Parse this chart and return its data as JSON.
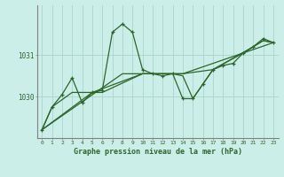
{
  "title": "Graphe pression niveau de la mer (hPa)",
  "bg_color": "#cceee8",
  "line_color": "#2d6627",
  "grid_color": "#aad4cc",
  "spine_color": "#808080",
  "x_ticks": [
    0,
    1,
    2,
    3,
    4,
    5,
    6,
    7,
    8,
    9,
    10,
    11,
    12,
    13,
    14,
    15,
    16,
    17,
    18,
    19,
    20,
    21,
    22,
    23
  ],
  "y_ticks": [
    1030,
    1031
  ],
  "ylim": [
    1029.0,
    1032.2
  ],
  "xlim": [
    -0.5,
    23.5
  ],
  "series1": [
    [
      0,
      1029.2
    ],
    [
      1,
      1029.75
    ],
    [
      2,
      1030.05
    ],
    [
      3,
      1030.45
    ],
    [
      4,
      1029.85
    ],
    [
      5,
      1030.1
    ],
    [
      6,
      1030.15
    ],
    [
      7,
      1031.55
    ],
    [
      8,
      1031.75
    ],
    [
      9,
      1031.55
    ],
    [
      10,
      1030.65
    ],
    [
      11,
      1030.55
    ],
    [
      12,
      1030.5
    ],
    [
      13,
      1030.55
    ],
    [
      14,
      1029.95
    ],
    [
      15,
      1029.95
    ],
    [
      16,
      1030.3
    ],
    [
      17,
      1030.65
    ],
    [
      18,
      1030.75
    ],
    [
      19,
      1030.8
    ],
    [
      20,
      1031.05
    ],
    [
      21,
      1031.2
    ],
    [
      22,
      1031.4
    ],
    [
      23,
      1031.3
    ]
  ],
  "series2": [
    [
      0,
      1029.2
    ],
    [
      1,
      1029.75
    ],
    [
      3,
      1030.1
    ],
    [
      5,
      1030.1
    ],
    [
      6,
      1030.1
    ],
    [
      10,
      1030.55
    ],
    [
      13,
      1030.55
    ],
    [
      14,
      1030.5
    ],
    [
      15,
      1029.95
    ],
    [
      16,
      1030.3
    ],
    [
      17,
      1030.65
    ],
    [
      21,
      1031.2
    ],
    [
      22,
      1031.35
    ],
    [
      23,
      1031.3
    ]
  ],
  "series3": [
    [
      0,
      1029.2
    ],
    [
      5,
      1030.1
    ],
    [
      10,
      1030.55
    ],
    [
      14,
      1030.55
    ],
    [
      17,
      1030.65
    ],
    [
      20,
      1031.05
    ],
    [
      22,
      1031.35
    ],
    [
      23,
      1031.3
    ]
  ],
  "series4": [
    [
      0,
      1029.2
    ],
    [
      8,
      1030.55
    ],
    [
      14,
      1030.55
    ],
    [
      20,
      1031.05
    ],
    [
      23,
      1031.3
    ]
  ],
  "xlabel_fontsize": 6.0,
  "ytick_fontsize": 5.5,
  "xtick_fontsize": 4.5
}
